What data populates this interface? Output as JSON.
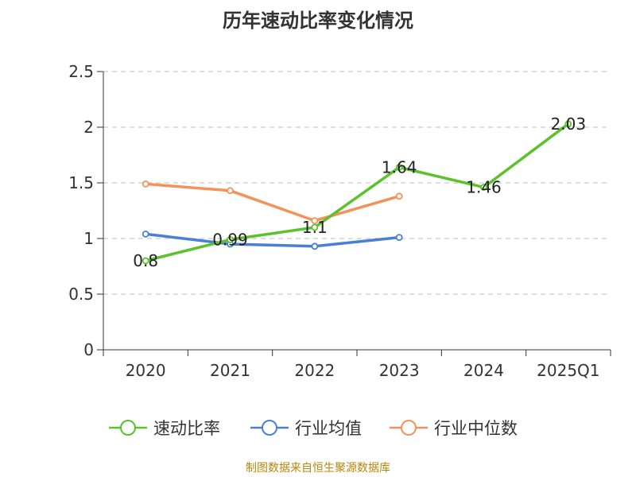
{
  "chart_data": {
    "type": "line",
    "title": "历年速动比率变化情况",
    "categories": [
      "2020",
      "2021",
      "2022",
      "2023",
      "2024",
      "2025Q1"
    ],
    "ylim": [
      0,
      2.5
    ],
    "yticks": [
      "0",
      "0.5",
      "1",
      "1.5",
      "2",
      "2.5"
    ],
    "grid": true,
    "legend_position": "bottom",
    "series": [
      {
        "name": "速动比率",
        "color": "#5cc22b",
        "labeled": true,
        "values": [
          0.8,
          0.99,
          1.1,
          1.64,
          1.46,
          2.03
        ],
        "labels": [
          "0.8",
          "0.99",
          "1.1",
          "1.64",
          "1.46",
          "2.03"
        ]
      },
      {
        "name": "行业均值",
        "color": "#4a7fd6",
        "labeled": false,
        "values": [
          1.04,
          0.95,
          0.93,
          1.01,
          null,
          null
        ]
      },
      {
        "name": "行业中位数",
        "color": "#f4925a",
        "labeled": false,
        "values": [
          1.49,
          1.43,
          1.16,
          1.38,
          null,
          null
        ]
      }
    ]
  },
  "footer": {
    "source": "制图数据来自恒生聚源数据库"
  }
}
